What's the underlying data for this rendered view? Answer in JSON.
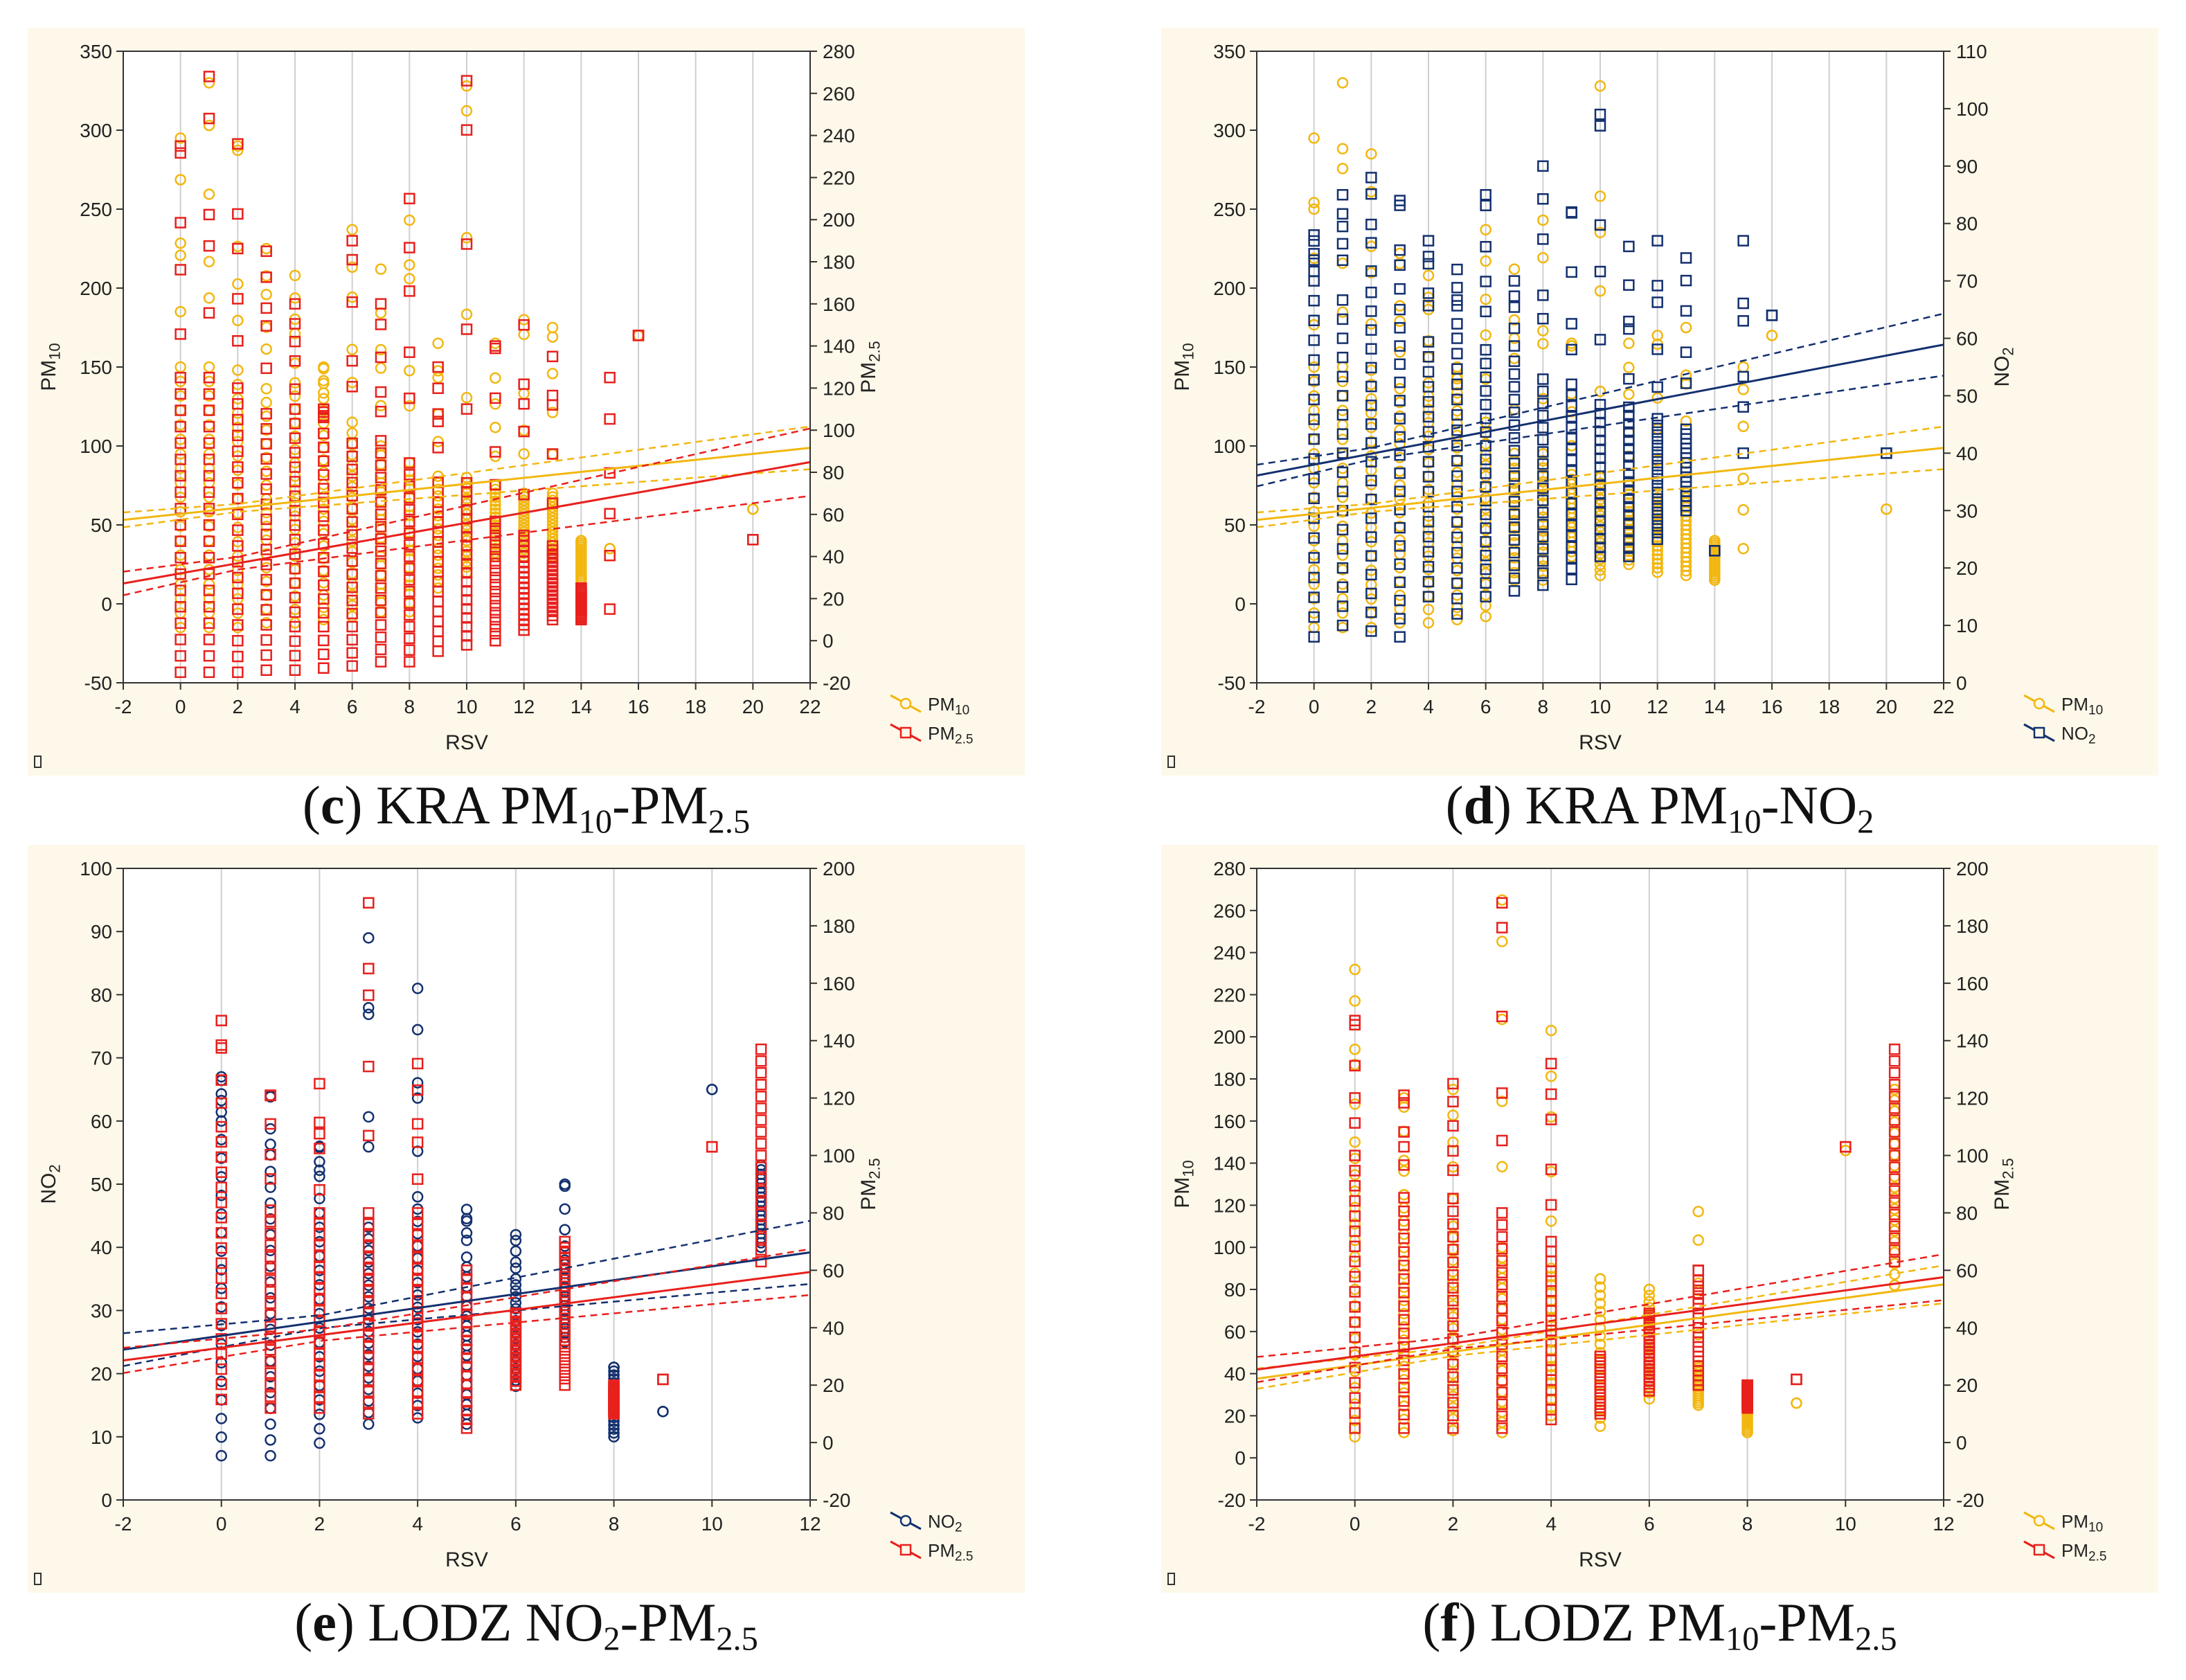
{
  "chart_data": [
    {
      "type": "scatter",
      "caption_letter": "c",
      "caption_parts": [
        "KRA PM",
        "10",
        "-PM",
        "2.5"
      ],
      "xlabel": "RSV",
      "xlim": [
        -2,
        22
      ],
      "xticks": [
        -2,
        0,
        2,
        4,
        6,
        8,
        10,
        12,
        14,
        16,
        18,
        20,
        22
      ],
      "ylabel_left": {
        "base": "PM",
        "sub": "10"
      },
      "ylim_left": [
        -50,
        350
      ],
      "yticks_left": [
        -50,
        0,
        50,
        100,
        150,
        200,
        250,
        300,
        350
      ],
      "ylabel_right": {
        "base": "PM",
        "sub": "2.5"
      },
      "ylim_right": [
        -20,
        280
      ],
      "yticks_right": [
        -20,
        0,
        20,
        40,
        60,
        80,
        100,
        120,
        140,
        160,
        180,
        200,
        220,
        240,
        260,
        280
      ],
      "series": [
        {
          "name": "PM",
          "sub": "10",
          "axis": "left",
          "marker": "circle",
          "color": "#f2b70f",
          "fit": {
            "intercept": 57,
            "slope": 1.9,
            "band": [
              2.5,
              0.55
            ]
          },
          "columns": [
            [
              0,
              -15,
              150,
              295
            ],
            [
              1,
              -15,
              150,
              330
            ],
            [
              2,
              -15,
              148,
              290
            ],
            [
              3,
              -12,
              145,
              225
            ],
            [
              4,
              -12,
              140,
              208
            ],
            [
              5,
              -10,
              130,
              150
            ],
            [
              6,
              -8,
              115,
              237
            ],
            [
              7,
              -5,
              100,
              212
            ],
            [
              8,
              -5,
              95,
              243
            ],
            [
              9,
              10,
              85,
              165
            ],
            [
              10,
              20,
              80,
              328
            ],
            [
              11,
              30,
              75,
              165
            ],
            [
              12,
              30,
              70,
              180
            ],
            [
              13,
              30,
              70,
              175
            ],
            [
              14,
              15,
              40,
              40
            ],
            [
              15,
              35,
              35,
              35
            ],
            [
              16,
              170,
              170,
              170
            ],
            [
              20,
              60,
              60,
              60
            ]
          ]
        },
        {
          "name": "PM",
          "sub": "2.5",
          "axis": "right",
          "marker": "square",
          "color": "#e8201c",
          "fit": {
            "intercept": 32,
            "slope": 2.4,
            "band": [
              3,
              0.65
            ]
          },
          "columns": [
            [
              0,
              -15,
              125,
              235
            ],
            [
              1,
              -15,
              125,
              268
            ],
            [
              2,
              -15,
              120,
              236
            ],
            [
              3,
              -14,
              115,
              185
            ],
            [
              4,
              -14,
              110,
              160
            ],
            [
              5,
              -13,
              105,
              110
            ],
            [
              6,
              -12,
              100,
              190
            ],
            [
              7,
              -10,
              95,
              160
            ],
            [
              8,
              -10,
              90,
              210
            ],
            [
              9,
              -5,
              80,
              130
            ],
            [
              10,
              -2,
              75,
              266
            ],
            [
              11,
              0,
              60,
              140
            ],
            [
              12,
              5,
              50,
              150
            ],
            [
              13,
              10,
              45,
              135
            ],
            [
              14,
              10,
              25,
              25
            ],
            [
              15,
              15,
              15,
              125
            ],
            [
              16,
              145,
              145,
              145
            ],
            [
              20,
              48,
              48,
              48
            ]
          ]
        }
      ]
    },
    {
      "type": "scatter",
      "caption_letter": "d",
      "caption_parts": [
        "KRA PM",
        "10",
        "-NO",
        "2"
      ],
      "xlabel": "RSV",
      "xlim": [
        -2,
        22
      ],
      "xticks": [
        -2,
        0,
        2,
        4,
        6,
        8,
        10,
        12,
        14,
        16,
        18,
        20,
        22
      ],
      "ylabel_left": {
        "base": "PM",
        "sub": "10"
      },
      "ylim_left": [
        -50,
        350
      ],
      "yticks_left": [
        -50,
        0,
        50,
        100,
        150,
        200,
        250,
        300,
        350
      ],
      "ylabel_right": {
        "base": "NO",
        "sub": "2"
      },
      "ylim_right": [
        0,
        110
      ],
      "yticks_right": [
        0,
        10,
        20,
        30,
        40,
        50,
        60,
        70,
        80,
        90,
        100,
        110
      ],
      "series": [
        {
          "name": "PM",
          "sub": "10",
          "axis": "left",
          "marker": "circle",
          "color": "#f2b70f",
          "fit": {
            "intercept": 57,
            "slope": 1.9,
            "band": [
              2.5,
              0.55
            ]
          },
          "columns": [
            [
              0,
              -15,
              150,
              295
            ],
            [
              1,
              -15,
              150,
              330
            ],
            [
              2,
              -15,
              148,
              285
            ],
            [
              3,
              -12,
              145,
              222
            ],
            [
              4,
              -12,
              140,
              208
            ],
            [
              5,
              -10,
              130,
              150
            ],
            [
              6,
              -8,
              115,
              237
            ],
            [
              7,
              15,
              100,
              212
            ],
            [
              8,
              15,
              95,
              243
            ],
            [
              9,
              30,
              85,
              165
            ],
            [
              10,
              18,
              80,
              328
            ],
            [
              11,
              25,
              75,
              165
            ],
            [
              12,
              20,
              70,
              170
            ],
            [
              13,
              18,
              70,
              175
            ],
            [
              14,
              15,
              40,
              40
            ],
            [
              15,
              35,
              35,
              150
            ],
            [
              16,
              170,
              170,
              170
            ],
            [
              20,
              60,
              60,
              60
            ]
          ]
        },
        {
          "name": "NO",
          "sub": "2",
          "axis": "right",
          "marker": "square",
          "color": "#13306f",
          "fit": {
            "intercept": 38,
            "slope": 0.95,
            "band": [
              1,
              0.22
            ]
          },
          "columns": [
            [
              0,
              8,
              70,
              78
            ],
            [
              1,
              10,
              70,
              85
            ],
            [
              2,
              9,
              68,
              88
            ],
            [
              3,
              8,
              65,
              84
            ],
            [
              4,
              15,
              62,
              77
            ],
            [
              5,
              12,
              60,
              72
            ],
            [
              6,
              15,
              58,
              85
            ],
            [
              7,
              16,
              56,
              70
            ],
            [
              8,
              17,
              55,
              90
            ],
            [
              9,
              18,
              52,
              82
            ],
            [
              10,
              22,
              50,
              99
            ],
            [
              11,
              22,
              48,
              76
            ],
            [
              12,
              25,
              46,
              77
            ],
            [
              13,
              30,
              45,
              74
            ],
            [
              14,
              23,
              23,
              23
            ],
            [
              15,
              40,
              40,
              77
            ],
            [
              16,
              64,
              64,
              64
            ],
            [
              20,
              40,
              40,
              40
            ]
          ]
        }
      ]
    },
    {
      "type": "scatter",
      "caption_letter": "e",
      "caption_parts": [
        "LODZ NO",
        "2",
        "-PM",
        "2.5"
      ],
      "xlabel": "RSV",
      "xlim": [
        -2,
        12
      ],
      "xticks": [
        -2,
        0,
        2,
        4,
        6,
        8,
        10,
        12
      ],
      "ylabel_left": {
        "base": "NO",
        "sub": "2"
      },
      "ylim_left": [
        0,
        100
      ],
      "yticks_left": [
        0,
        10,
        20,
        30,
        40,
        50,
        60,
        70,
        80,
        90,
        100
      ],
      "ylabel_right": {
        "base": "PM",
        "sub": "2.5"
      },
      "ylim_right": [
        -20,
        200
      ],
      "yticks_right": [
        -20,
        0,
        20,
        40,
        60,
        80,
        100,
        120,
        140,
        160,
        180,
        200
      ],
      "series": [
        {
          "name": "NO",
          "sub": "2",
          "axis": "left",
          "marker": "circle",
          "color": "#13306f",
          "fit": {
            "intercept": 26,
            "slope": 1.1,
            "band": [
              1,
              0.4
            ]
          },
          "columns": [
            [
              0,
              7,
              60,
              67
            ],
            [
              1,
              7,
              52,
              64
            ],
            [
              2,
              9,
              50,
              56
            ],
            [
              3,
              12,
              45,
              89
            ],
            [
              4,
              13,
              48,
              81
            ],
            [
              5,
              12,
              40,
              46
            ],
            [
              6,
              18,
              35,
              42
            ],
            [
              7,
              25,
              38,
              50
            ],
            [
              8,
              10,
              21,
              21
            ],
            [
              9,
              14,
              14,
              14
            ],
            [
              10,
              65,
              65,
              65
            ],
            [
              11,
              40,
              53,
              53
            ]
          ]
        },
        {
          "name": "PM",
          "sub": "2.5",
          "axis": "right",
          "marker": "square",
          "color": "#e8201c",
          "fit": {
            "intercept": 33,
            "slope": 2.2,
            "band": [
              2,
              0.6
            ]
          },
          "columns": [
            [
              0,
              15,
              110,
              147
            ],
            [
              1,
              12,
              85,
              121
            ],
            [
              2,
              12,
              80,
              125
            ],
            [
              3,
              10,
              80,
              188
            ],
            [
              4,
              10,
              80,
              132
            ],
            [
              5,
              5,
              60,
              60
            ],
            [
              6,
              20,
              45,
              45
            ],
            [
              7,
              20,
              60,
              70
            ],
            [
              8,
              10,
              20,
              20
            ],
            [
              9,
              22,
              22,
              22
            ],
            [
              10,
              103,
              103,
              103
            ],
            [
              11,
              63,
              137,
              137
            ]
          ]
        }
      ]
    },
    {
      "type": "scatter",
      "caption_letter": "f",
      "caption_parts": [
        "LODZ PM",
        "10",
        "-PM",
        "2.5"
      ],
      "xlabel": "RSV",
      "xlim": [
        -2,
        12
      ],
      "xticks": [
        -2,
        0,
        2,
        4,
        6,
        8,
        10,
        12
      ],
      "ylabel_left": {
        "base": "PM",
        "sub": "10"
      },
      "ylim_left": [
        -20,
        280
      ],
      "yticks_left": [
        -20,
        0,
        20,
        40,
        60,
        80,
        100,
        120,
        140,
        160,
        180,
        200,
        220,
        240,
        260,
        280
      ],
      "ylabel_right": {
        "base": "PM",
        "sub": "2.5"
      },
      "ylim_right": [
        -20,
        200
      ],
      "yticks_right": [
        -20,
        0,
        20,
        40,
        60,
        80,
        100,
        120,
        140,
        160,
        180,
        200
      ],
      "series": [
        {
          "name": "PM",
          "sub": "10",
          "axis": "left",
          "marker": "circle",
          "color": "#f2b70f",
          "fit": {
            "intercept": 44,
            "slope": 3.2,
            "band": [
              2,
              0.7
            ]
          },
          "columns": [
            [
              0,
              10,
              150,
              232
            ],
            [
              1,
              12,
              125,
              171
            ],
            [
              2,
              13,
              110,
              175
            ],
            [
              3,
              12,
              100,
              265
            ],
            [
              4,
              20,
              90,
              203
            ],
            [
              5,
              15,
              85,
              85
            ],
            [
              6,
              28,
              80,
              80
            ],
            [
              7,
              25,
              45,
              117
            ],
            [
              8,
              12,
              30,
              30
            ],
            [
              9,
              26,
              26,
              26
            ],
            [
              10,
              146,
              146,
              146
            ],
            [
              11,
              82,
              175,
              175
            ]
          ]
        },
        {
          "name": "PM",
          "sub": "2.5",
          "axis": "right",
          "marker": "square",
          "color": "#e8201c",
          "fit": {
            "intercept": 30,
            "slope": 2.3,
            "band": [
              2,
              0.6
            ]
          },
          "columns": [
            [
              0,
              5,
              100,
              147
            ],
            [
              1,
              5,
              90,
              121
            ],
            [
              2,
              5,
              85,
              125
            ],
            [
              3,
              5,
              80,
              188
            ],
            [
              4,
              8,
              70,
              132
            ],
            [
              5,
              10,
              30,
              30
            ],
            [
              6,
              18,
              40,
              45
            ],
            [
              7,
              20,
              50,
              60
            ],
            [
              8,
              12,
              20,
              20
            ],
            [
              9,
              22,
              22,
              22
            ],
            [
              10,
              103,
              103,
              103
            ],
            [
              11,
              63,
              137,
              137
            ]
          ]
        }
      ]
    }
  ]
}
